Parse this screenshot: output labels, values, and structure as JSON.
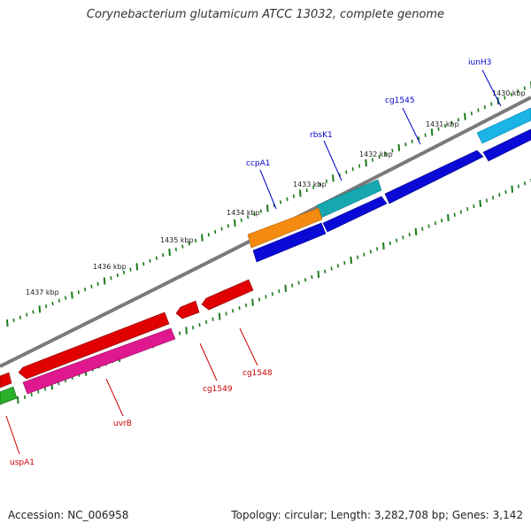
{
  "title": "Corynebacterium glutamicum ATCC 13032, complete genome",
  "accession_text": "Accession: NC_006958",
  "topology_text": "Topology: circular; Length: 3,282,708 bp; Genes: 3,142",
  "scale_labels": [
    "1430 kbp",
    "1431 kbp",
    "1432 kbp",
    "1433 kbp",
    "1434 kbp",
    "1435 kbp",
    "1436 kbp",
    "1437 kbp"
  ],
  "genes": [
    {
      "name": "iunH3",
      "strand": "forward",
      "color": "#1ab4e6"
    },
    {
      "name": "cg1545",
      "strand": "forward",
      "color": "#0a0ad6"
    },
    {
      "name": "rbsK1",
      "strand": "forward",
      "color": "#15a8b0"
    },
    {
      "name": "ccpA1",
      "strand": "forward",
      "color": "#f58a10"
    },
    {
      "name": "cg1548",
      "strand": "reverse",
      "color": "#e00000"
    },
    {
      "name": "cg1549",
      "strand": "reverse",
      "color": "#e00000"
    },
    {
      "name": "uvrB",
      "strand": "reverse",
      "color": "#e01890"
    },
    {
      "name": "uspA1",
      "strand": "reverse",
      "color": "#2ab02a"
    }
  ],
  "colors": {
    "forward_label": "#0000cc",
    "reverse_label": "#cc0000",
    "backbone": "#777777",
    "tick": "#1a7a1a"
  }
}
